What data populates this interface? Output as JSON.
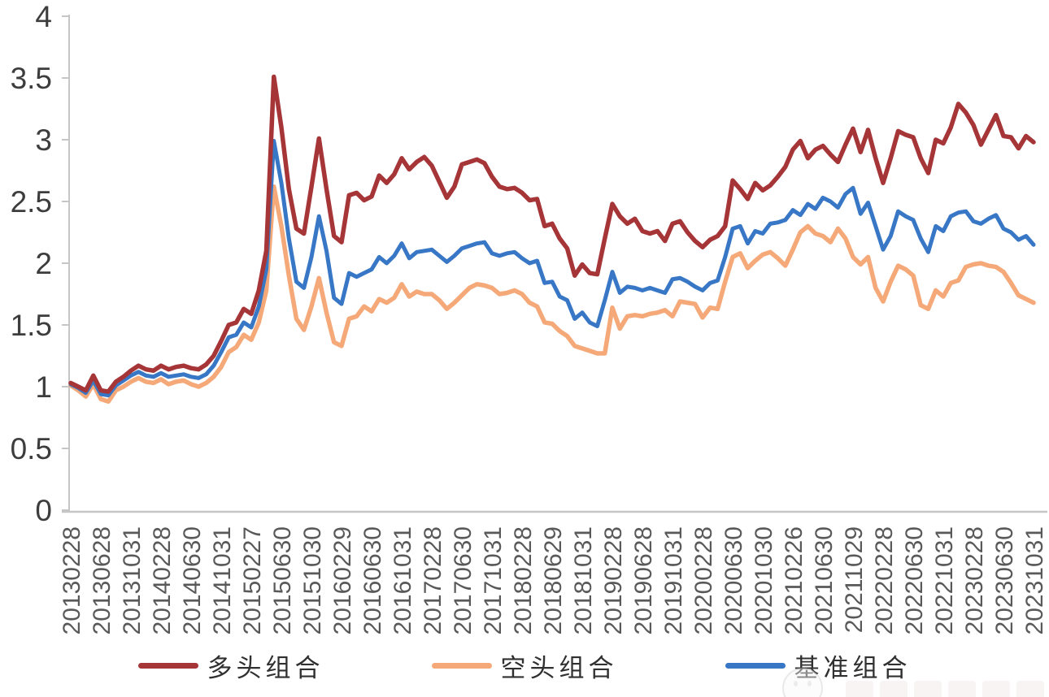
{
  "page": {
    "background": "#FFFFFF",
    "description": "Line chart comparing cumulative net value of long, short and benchmark portfolios, Feb 2013 - Oct 2023"
  },
  "chart_data": {
    "type": "line",
    "title": "",
    "xlabel": "",
    "ylabel": "",
    "grid": false,
    "legend_position": "bottom-center",
    "x_axis": {
      "frequency": "monthly",
      "n_points": 129,
      "points_per_label": 4,
      "start": "20130228",
      "end": "20231031",
      "tick_labels": [
        "20130228",
        "20130628",
        "20131031",
        "20140228",
        "20140630",
        "20141031",
        "20150227",
        "20150630",
        "20151030",
        "20160229",
        "20160630",
        "20161031",
        "20170228",
        "20170630",
        "20171031",
        "20180228",
        "20180629",
        "20181031",
        "20190228",
        "20190628",
        "20191031",
        "20200228",
        "20200630",
        "20201030",
        "20210226",
        "20210630",
        "20211029",
        "20220228",
        "20220630",
        "20221031",
        "20230228",
        "20230630",
        "20231031"
      ]
    },
    "y_axis": {
      "min": 0,
      "max": 4,
      "tick_step": 0.5,
      "tick_values": [
        0,
        0.5,
        1,
        1.5,
        2,
        2.5,
        3,
        3.5,
        4
      ],
      "tick_labels": [
        "0",
        "0.5",
        "1",
        "1.5",
        "2",
        "2.5",
        "3",
        "3.5",
        "4"
      ]
    },
    "series": [
      {
        "name": "多头组合",
        "color": "#A63538",
        "line_width": 5.5,
        "values": [
          1.03,
          1.0,
          0.97,
          1.09,
          0.97,
          0.96,
          1.04,
          1.08,
          1.13,
          1.17,
          1.14,
          1.13,
          1.17,
          1.14,
          1.16,
          1.17,
          1.15,
          1.14,
          1.18,
          1.25,
          1.37,
          1.5,
          1.52,
          1.63,
          1.59,
          1.78,
          2.1,
          3.51,
          3.1,
          2.6,
          2.28,
          2.24,
          2.62,
          3.01,
          2.6,
          2.22,
          2.17,
          2.55,
          2.57,
          2.51,
          2.54,
          2.71,
          2.65,
          2.72,
          2.85,
          2.76,
          2.82,
          2.86,
          2.79,
          2.66,
          2.53,
          2.62,
          2.8,
          2.82,
          2.84,
          2.81,
          2.7,
          2.62,
          2.6,
          2.61,
          2.57,
          2.51,
          2.52,
          2.3,
          2.32,
          2.2,
          2.12,
          1.9,
          1.99,
          1.92,
          1.91,
          2.2,
          2.48,
          2.38,
          2.32,
          2.36,
          2.26,
          2.24,
          2.26,
          2.18,
          2.32,
          2.34,
          2.25,
          2.18,
          2.13,
          2.19,
          2.22,
          2.3,
          2.67,
          2.6,
          2.52,
          2.65,
          2.59,
          2.63,
          2.7,
          2.78,
          2.92,
          2.99,
          2.85,
          2.92,
          2.95,
          2.88,
          2.82,
          2.96,
          3.09,
          2.9,
          3.08,
          2.85,
          2.65,
          2.85,
          3.07,
          3.04,
          3.02,
          2.85,
          2.73,
          3.0,
          2.97,
          3.1,
          3.29,
          3.22,
          3.12,
          2.96,
          3.08,
          3.2,
          3.03,
          3.02,
          2.93,
          3.03,
          2.98
        ]
      },
      {
        "name": "空头组合",
        "color": "#F5A878",
        "line_width": 5.5,
        "values": [
          1.01,
          0.97,
          0.92,
          1.02,
          0.9,
          0.88,
          0.97,
          1.0,
          1.04,
          1.07,
          1.04,
          1.03,
          1.06,
          1.02,
          1.04,
          1.05,
          1.02,
          1.0,
          1.03,
          1.08,
          1.16,
          1.28,
          1.32,
          1.42,
          1.38,
          1.52,
          1.78,
          2.62,
          2.3,
          1.9,
          1.55,
          1.46,
          1.65,
          1.88,
          1.6,
          1.36,
          1.33,
          1.55,
          1.57,
          1.65,
          1.61,
          1.71,
          1.68,
          1.72,
          1.83,
          1.73,
          1.77,
          1.75,
          1.75,
          1.7,
          1.63,
          1.68,
          1.74,
          1.8,
          1.83,
          1.82,
          1.8,
          1.75,
          1.76,
          1.78,
          1.75,
          1.68,
          1.65,
          1.52,
          1.51,
          1.45,
          1.41,
          1.33,
          1.31,
          1.29,
          1.27,
          1.27,
          1.64,
          1.47,
          1.57,
          1.58,
          1.57,
          1.59,
          1.6,
          1.62,
          1.57,
          1.69,
          1.68,
          1.67,
          1.56,
          1.64,
          1.63,
          1.85,
          2.05,
          2.08,
          1.96,
          2.02,
          2.07,
          2.09,
          2.04,
          1.98,
          2.11,
          2.25,
          2.3,
          2.24,
          2.22,
          2.17,
          2.28,
          2.2,
          2.05,
          1.99,
          2.05,
          1.8,
          1.69,
          1.85,
          1.98,
          1.95,
          1.9,
          1.66,
          1.63,
          1.78,
          1.73,
          1.84,
          1.86,
          1.97,
          1.99,
          2.0,
          1.98,
          1.97,
          1.93,
          1.84,
          1.74,
          1.71,
          1.68
        ]
      },
      {
        "name": "基准组合",
        "color": "#3877C5",
        "line_width": 5,
        "values": [
          1.02,
          0.99,
          0.95,
          1.05,
          0.94,
          0.93,
          1.01,
          1.05,
          1.09,
          1.12,
          1.09,
          1.08,
          1.11,
          1.08,
          1.09,
          1.1,
          1.08,
          1.07,
          1.1,
          1.17,
          1.28,
          1.4,
          1.42,
          1.52,
          1.48,
          1.65,
          1.95,
          2.99,
          2.65,
          2.2,
          1.85,
          1.8,
          2.05,
          2.38,
          2.1,
          1.72,
          1.67,
          1.92,
          1.89,
          1.92,
          1.95,
          2.05,
          2.0,
          2.06,
          2.16,
          2.04,
          2.09,
          2.1,
          2.11,
          2.06,
          2.01,
          2.06,
          2.12,
          2.14,
          2.16,
          2.17,
          2.08,
          2.06,
          2.08,
          2.09,
          2.04,
          2.0,
          2.02,
          1.84,
          1.85,
          1.73,
          1.7,
          1.55,
          1.6,
          1.52,
          1.49,
          1.7,
          1.93,
          1.76,
          1.81,
          1.8,
          1.78,
          1.8,
          1.78,
          1.76,
          1.87,
          1.88,
          1.85,
          1.81,
          1.78,
          1.84,
          1.86,
          2.05,
          2.28,
          2.3,
          2.16,
          2.26,
          2.24,
          2.32,
          2.33,
          2.35,
          2.43,
          2.39,
          2.48,
          2.44,
          2.53,
          2.5,
          2.45,
          2.56,
          2.61,
          2.4,
          2.49,
          2.3,
          2.11,
          2.22,
          2.42,
          2.38,
          2.35,
          2.2,
          2.09,
          2.3,
          2.26,
          2.38,
          2.41,
          2.42,
          2.34,
          2.32,
          2.36,
          2.39,
          2.28,
          2.25,
          2.19,
          2.22,
          2.15
        ]
      }
    ]
  },
  "colors": {
    "axis_line": "#C6C6C6",
    "y_tick_label": "#3D3D3D",
    "x_tick_label": "#595959",
    "legend_text": "#303030",
    "background": "#FFFFFF"
  }
}
